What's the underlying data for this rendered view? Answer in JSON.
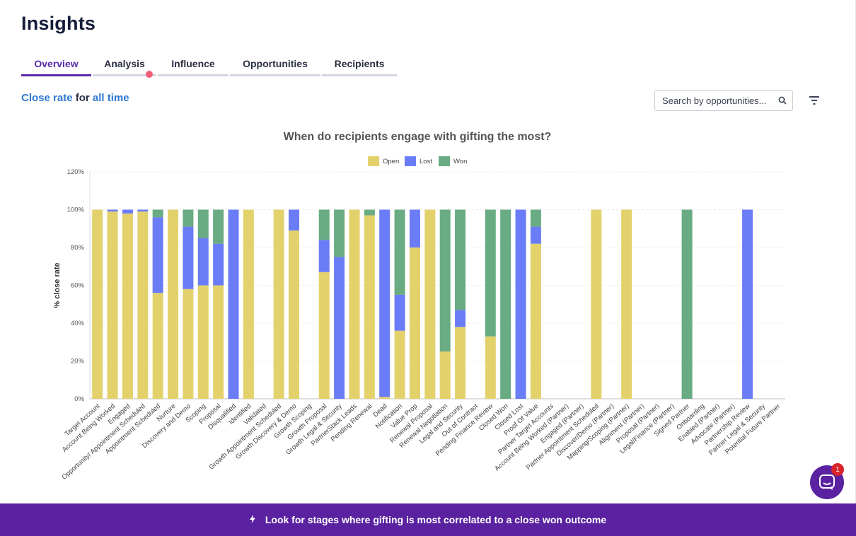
{
  "header": {
    "title": "Insights"
  },
  "tabs": [
    {
      "label": "Overview"
    },
    {
      "label": "Analysis"
    },
    {
      "label": "Influence"
    },
    {
      "label": "Opportunities"
    },
    {
      "label": "Recipients"
    }
  ],
  "subhead": {
    "metric": "Close rate",
    "connector": " for ",
    "period": "all time"
  },
  "search": {
    "placeholder": "Search by opportunities..."
  },
  "banner": {
    "text": "Look for stages where gifting is most correlated to a close won outcome"
  },
  "chat": {
    "badge": "1"
  },
  "colors": {
    "Open": "#e3d16b",
    "Lost": "#6b7cf7",
    "Won": "#69ab82",
    "accent": "#5a22a0"
  },
  "chart_data": {
    "type": "bar",
    "stacked": true,
    "title": "When do recipients engage with gifting the most?",
    "ylabel": "% close rate",
    "xlabel": "",
    "ylim": [
      0,
      120
    ],
    "yticks": [
      "0%",
      "20%",
      "40%",
      "60%",
      "80%",
      "100%",
      "120%"
    ],
    "legend_position": "top",
    "grid": true,
    "categories": [
      "Target Account",
      "Account Being Worked",
      "Engaged",
      "Opportunity/ Appointment Scheduled",
      "Appointment Scheduled",
      "Nurture",
      "Discovery and Demo",
      "Scoping",
      "Proposal",
      "Disqualified",
      "Identified",
      "Validated",
      "Growth Appointment Scheduled",
      "Growth Discovery & Demo",
      "Growth Scoping",
      "Growth Proposal",
      "Growth Legal & Security",
      "PartnerStack Leads",
      "Pending Renewal",
      "Dead",
      "Notification",
      "Value Prop",
      "Renewal Proposal",
      "Renewal Negotiation",
      "Legal and Security",
      "Out of Contract",
      "Pending Finance Review",
      "Closed Won",
      "Closed Lost",
      "Proof Of Value",
      "Partner Target Accounts",
      "Account Being Worked (Partner)",
      "Engaged (Partner)",
      "Partner Appointment Scheduled",
      "Discover/Demo (Partner)",
      "Mapping/Scoping (Partner)",
      "Alignment (Partner)",
      "Proposal (Partner)",
      "Legal/Finance (Partner)",
      "Signed Partner",
      "Onboarding",
      "Enabled (Partner)",
      "Advocate (Partner)",
      "Partnership Review",
      "Partner Legal & Security",
      "Potential Future Partner"
    ],
    "series": [
      {
        "name": "Open",
        "values": [
          100,
          99,
          98,
          99,
          56,
          100,
          58,
          60,
          60,
          0,
          100,
          0,
          100,
          89,
          0,
          67,
          0,
          100,
          97,
          1,
          36,
          80,
          100,
          25,
          38,
          0,
          33,
          0,
          0,
          82,
          0,
          0,
          0,
          100,
          0,
          100,
          0,
          0,
          0,
          0,
          0,
          0,
          0,
          0,
          0,
          0
        ]
      },
      {
        "name": "Lost",
        "values": [
          0,
          1,
          2,
          1,
          40,
          0,
          33,
          25,
          22,
          100,
          0,
          0,
          0,
          11,
          0,
          17,
          75,
          0,
          0,
          99,
          19,
          20,
          0,
          0,
          9,
          0,
          0,
          0,
          100,
          9,
          0,
          0,
          0,
          0,
          0,
          0,
          0,
          0,
          0,
          0,
          0,
          0,
          0,
          100,
          0,
          0
        ]
      },
      {
        "name": "Won",
        "values": [
          0,
          0,
          0,
          0,
          4,
          0,
          9,
          15,
          18,
          0,
          0,
          0,
          0,
          0,
          0,
          16,
          25,
          0,
          3,
          0,
          45,
          0,
          0,
          75,
          53,
          0,
          67,
          100,
          0,
          9,
          0,
          0,
          0,
          0,
          0,
          0,
          0,
          0,
          0,
          100,
          0,
          0,
          0,
          0,
          0,
          0
        ]
      }
    ]
  }
}
